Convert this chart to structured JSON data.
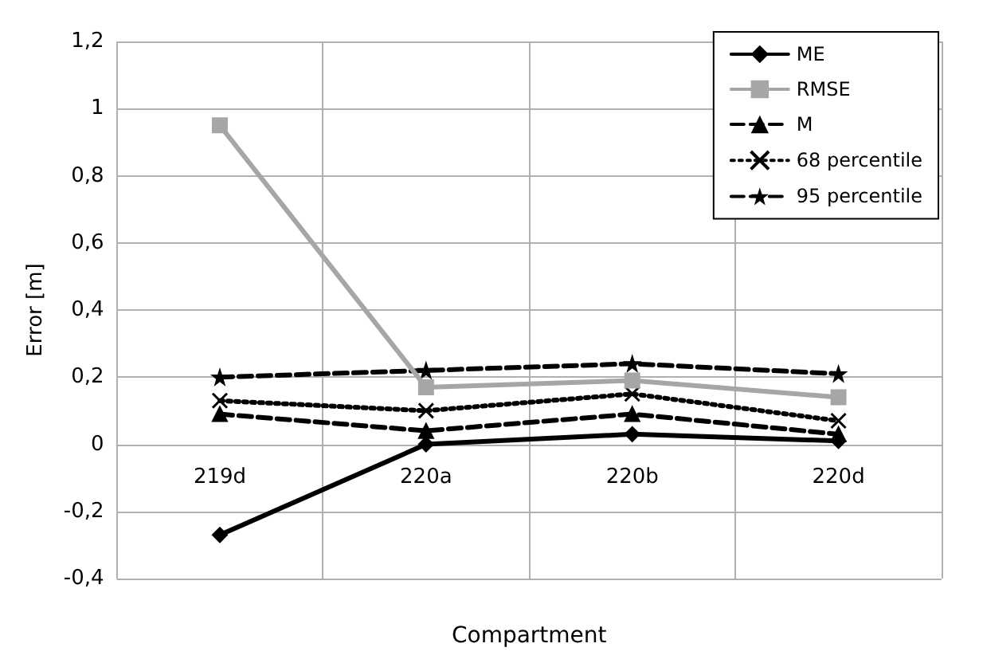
{
  "chart_data": {
    "type": "line",
    "xlabel": "Compartment",
    "ylabel": "Error [m]",
    "categories": [
      "219d",
      "220a",
      "220b",
      "220d"
    ],
    "series": [
      {
        "name": "ME",
        "color": "#000000",
        "marker": "diamond",
        "line_style": "solid",
        "values": [
          -0.27,
          0.0,
          0.03,
          0.01
        ]
      },
      {
        "name": "RMSE",
        "color": "#a6a6a6",
        "marker": "square",
        "line_style": "solid",
        "values": [
          0.95,
          0.17,
          0.19,
          0.14
        ]
      },
      {
        "name": "M",
        "color": "#000000",
        "marker": "triangle",
        "line_style": "dashed",
        "values": [
          0.09,
          0.04,
          0.09,
          0.03
        ]
      },
      {
        "name": "68 percentile",
        "color": "#000000",
        "marker": "cross",
        "line_style": "dotted",
        "values": [
          0.13,
          0.1,
          0.15,
          0.07
        ]
      },
      {
        "name": "95 percentile",
        "color": "#000000",
        "marker": "star",
        "line_style": "dashed",
        "values": [
          0.2,
          0.22,
          0.24,
          0.21
        ]
      }
    ],
    "ylim": [
      -0.4,
      1.2
    ],
    "yticks": [
      {
        "value": -0.4,
        "label": "-0,4"
      },
      {
        "value": -0.2,
        "label": "-0,2"
      },
      0,
      {
        "value": 0.2,
        "label": "0,2"
      },
      {
        "value": 0.4,
        "label": "0,4"
      },
      {
        "value": 0.6,
        "label": "0,6"
      },
      {
        "value": 0.8,
        "label": "0,8"
      },
      1,
      {
        "value": 1.2,
        "label": "1,2"
      }
    ],
    "grid": true,
    "legend": "top right"
  }
}
